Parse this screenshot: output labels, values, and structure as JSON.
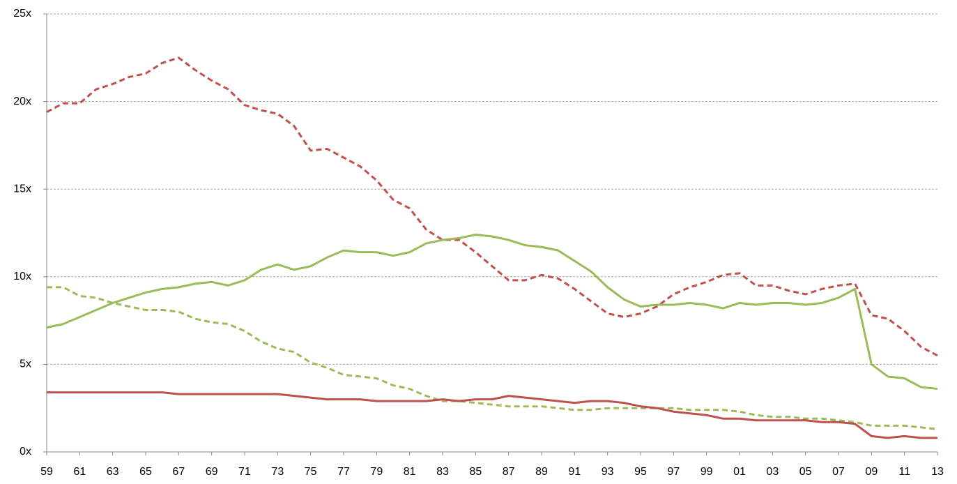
{
  "chart_data": {
    "type": "line",
    "categories": [
      "59",
      null,
      "61",
      null,
      "63",
      null,
      "65",
      null,
      "67",
      null,
      "69",
      null,
      "71",
      null,
      "73",
      null,
      "75",
      null,
      "77",
      null,
      "79",
      null,
      "81",
      null,
      "83",
      null,
      "85",
      null,
      "87",
      null,
      "89",
      null,
      "91",
      null,
      "93",
      null,
      "95",
      null,
      "97",
      null,
      "99",
      null,
      "01",
      null,
      "03",
      null,
      "05",
      null,
      "07",
      null,
      "09",
      null,
      "11",
      null,
      "13"
    ],
    "series": [
      {
        "color": "#c0504d",
        "dashed": true,
        "values": [
          19.4,
          19.9,
          19.9,
          20.7,
          21.0,
          21.4,
          21.6,
          22.2,
          22.5,
          21.8,
          21.2,
          20.7,
          19.8,
          19.5,
          19.3,
          18.6,
          17.2,
          17.3,
          16.8,
          16.3,
          15.5,
          14.4,
          13.9,
          12.7,
          12.1,
          12.1,
          11.4,
          10.6,
          9.8,
          9.8,
          10.1,
          9.9,
          9.3,
          8.6,
          7.9,
          7.7,
          7.9,
          8.3,
          9.0,
          9.4,
          9.7,
          10.1,
          10.2,
          9.5,
          9.5,
          9.2,
          9.0,
          9.3,
          9.5,
          9.6,
          7.8,
          7.6,
          6.9,
          6.0,
          5.5
        ]
      },
      {
        "color": "#9bbb59",
        "dashed": false,
        "values": [
          7.1,
          7.3,
          7.7,
          8.1,
          8.5,
          8.8,
          9.1,
          9.3,
          9.4,
          9.6,
          9.7,
          9.5,
          9.8,
          10.4,
          10.7,
          10.4,
          10.6,
          11.1,
          11.5,
          11.4,
          11.4,
          11.2,
          11.4,
          11.9,
          12.1,
          12.2,
          12.4,
          12.3,
          12.1,
          11.8,
          11.7,
          11.5,
          10.9,
          10.3,
          9.4,
          8.7,
          8.3,
          8.4,
          8.4,
          8.5,
          8.4,
          8.2,
          8.5,
          8.4,
          8.5,
          8.5,
          8.4,
          8.5,
          8.8,
          9.3,
          5.0,
          4.3,
          4.2,
          3.7,
          3.6
        ]
      },
      {
        "color": "#9bbb59",
        "dashed": true,
        "values": [
          9.4,
          9.4,
          8.9,
          8.8,
          8.5,
          8.3,
          8.1,
          8.1,
          8.0,
          7.6,
          7.4,
          7.3,
          6.9,
          6.3,
          5.9,
          5.7,
          5.1,
          4.8,
          4.4,
          4.3,
          4.2,
          3.8,
          3.6,
          3.2,
          2.9,
          2.9,
          2.8,
          2.7,
          2.6,
          2.6,
          2.6,
          2.5,
          2.4,
          2.4,
          2.5,
          2.5,
          2.5,
          2.5,
          2.5,
          2.4,
          2.4,
          2.4,
          2.3,
          2.1,
          2.0,
          2.0,
          1.9,
          1.9,
          1.8,
          1.7,
          1.5,
          1.5,
          1.5,
          1.4,
          1.3
        ]
      },
      {
        "color": "#c0504d",
        "dashed": false,
        "values": [
          3.4,
          3.4,
          3.4,
          3.4,
          3.4,
          3.4,
          3.4,
          3.4,
          3.3,
          3.3,
          3.3,
          3.3,
          3.3,
          3.3,
          3.3,
          3.2,
          3.1,
          3.0,
          3.0,
          3.0,
          2.9,
          2.9,
          2.9,
          2.9,
          3.0,
          2.9,
          3.0,
          3.0,
          3.2,
          3.1,
          3.0,
          2.9,
          2.8,
          2.9,
          2.9,
          2.8,
          2.6,
          2.5,
          2.3,
          2.2,
          2.1,
          1.9,
          1.9,
          1.8,
          1.8,
          1.8,
          1.8,
          1.7,
          1.7,
          1.6,
          0.9,
          0.8,
          0.9,
          0.8,
          0.8
        ]
      }
    ],
    "ylim": [
      0,
      25
    ],
    "yticks": [
      {
        "value": 0,
        "label": "0x"
      },
      {
        "value": 5,
        "label": "5x"
      },
      {
        "value": 10,
        "label": "10x"
      },
      {
        "value": 15,
        "label": "15x"
      },
      {
        "value": 20,
        "label": "20x"
      },
      {
        "value": 25,
        "label": "25x"
      }
    ],
    "grid": true
  }
}
